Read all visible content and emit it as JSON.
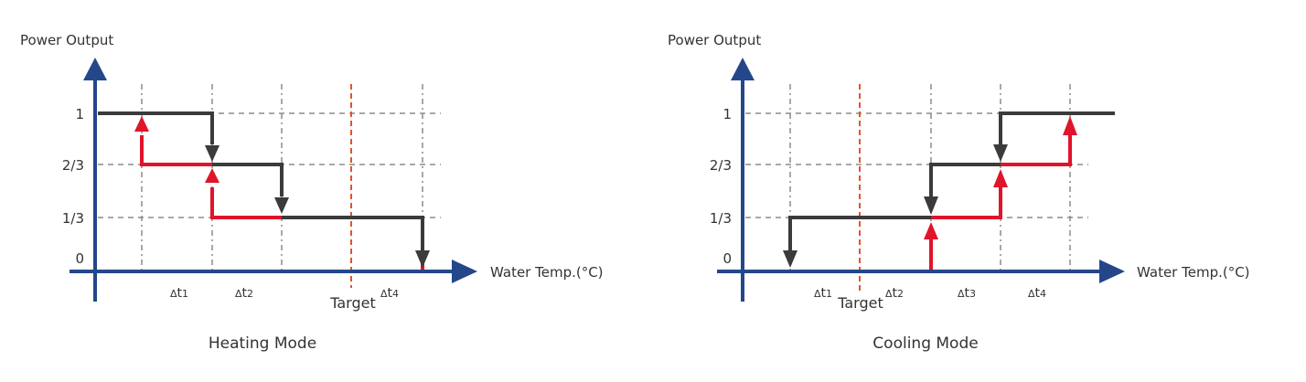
{
  "heating": {
    "y_axis_label": "Power Output",
    "x_axis_label": "Water Temp.(°C)",
    "y_ticks": [
      "1",
      "2/3",
      "1/3",
      "0"
    ],
    "intervals": [
      {
        "delta": "Δ",
        "t": "t",
        "sub": "1"
      },
      {
        "delta": "Δ",
        "t": "t",
        "sub": "2"
      },
      {
        "delta": "Δ",
        "t": "t",
        "sub": "4"
      }
    ],
    "target_label": "Target",
    "caption": "Heating Mode"
  },
  "cooling": {
    "y_axis_label": "Power Output",
    "x_axis_label": "Water Temp.(°C)",
    "y_ticks": [
      "1",
      "2/3",
      "1/3",
      "0"
    ],
    "intervals": [
      {
        "delta": "Δ",
        "t": "t",
        "sub": "1"
      },
      {
        "delta": "Δ",
        "t": "t",
        "sub": "2"
      },
      {
        "delta": "Δ",
        "t": "t",
        "sub": "3"
      },
      {
        "delta": "Δ",
        "t": "t",
        "sub": "4"
      }
    ],
    "target_label": "Target",
    "caption": "Cooling Mode"
  },
  "colors": {
    "axis": "#24478a",
    "power_decrease_step": "#3b3b3b",
    "power_increase_step": "#e0142a",
    "target_line": "#e2542b",
    "grid": "#8c8c8c"
  }
}
